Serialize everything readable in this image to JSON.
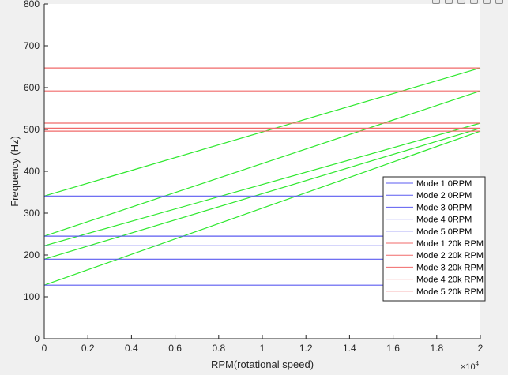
{
  "toolbar": {
    "icons": [
      "brush-icon",
      "datatip-icon",
      "pan-icon",
      "zoom-in-icon",
      "zoom-out-icon",
      "home-icon"
    ]
  },
  "chart_data": {
    "type": "line",
    "title": "",
    "xlabel": "RPM(rotational speed)",
    "ylabel": "Frequency (Hz)",
    "x_exponent_label": "×10",
    "x_exponent_power": "4",
    "xlim": [
      0,
      20000
    ],
    "ylim": [
      0,
      800
    ],
    "x_ticks": [
      0,
      2000,
      4000,
      6000,
      8000,
      10000,
      12000,
      14000,
      16000,
      18000,
      20000
    ],
    "x_tick_labels": [
      "0",
      "0.2",
      "0.4",
      "0.6",
      "0.8",
      "1",
      "1.2",
      "1.4",
      "1.6",
      "1.8",
      "2"
    ],
    "y_ticks": [
      0,
      100,
      200,
      300,
      400,
      500,
      600,
      700,
      800
    ],
    "y_tick_labels": [
      "0",
      "100",
      "200",
      "300",
      "400",
      "500",
      "600",
      "700",
      "800"
    ],
    "grid": false,
    "legend_position": "right",
    "colors": {
      "blue": "#5b5bf0",
      "red": "#f06a6a",
      "green": "#2ee82e",
      "axes_bg": "#ffffff",
      "figure_bg": "#f0f0f0"
    },
    "series": [
      {
        "name": "Mode 1 0RPM",
        "color": "blue",
        "x": [
          0,
          20000
        ],
        "y": [
          128,
          128
        ]
      },
      {
        "name": "Mode 2 0RPM",
        "color": "blue",
        "x": [
          0,
          20000
        ],
        "y": [
          190,
          190
        ]
      },
      {
        "name": "Mode 3 0RPM",
        "color": "blue",
        "x": [
          0,
          20000
        ],
        "y": [
          222,
          222
        ]
      },
      {
        "name": "Mode 4 0RPM",
        "color": "blue",
        "x": [
          0,
          20000
        ],
        "y": [
          245,
          245
        ]
      },
      {
        "name": "Mode 5 0RPM",
        "color": "blue",
        "x": [
          0,
          20000
        ],
        "y": [
          341,
          341
        ]
      },
      {
        "name": "Mode 1 20k RPM",
        "color": "red",
        "x": [
          0,
          20000
        ],
        "y": [
          496,
          496
        ]
      },
      {
        "name": "Mode 2 20k RPM",
        "color": "red",
        "x": [
          0,
          20000
        ],
        "y": [
          503,
          503
        ]
      },
      {
        "name": "Mode 3 20k RPM",
        "color": "red",
        "x": [
          0,
          20000
        ],
        "y": [
          515,
          515
        ]
      },
      {
        "name": "Mode 4 20k RPM",
        "color": "red",
        "x": [
          0,
          20000
        ],
        "y": [
          592,
          592
        ]
      },
      {
        "name": "Mode 5 20k RPM",
        "color": "red",
        "x": [
          0,
          20000
        ],
        "y": [
          647,
          647
        ]
      },
      {
        "color": "green",
        "x": [
          0,
          20000
        ],
        "y": [
          128,
          496
        ]
      },
      {
        "color": "green",
        "x": [
          0,
          20000
        ],
        "y": [
          190,
          503
        ]
      },
      {
        "color": "green",
        "x": [
          0,
          20000
        ],
        "y": [
          222,
          515
        ]
      },
      {
        "color": "green",
        "x": [
          0,
          20000
        ],
        "y": [
          245,
          592
        ]
      },
      {
        "color": "green",
        "x": [
          0,
          20000
        ],
        "y": [
          341,
          647
        ]
      }
    ]
  }
}
